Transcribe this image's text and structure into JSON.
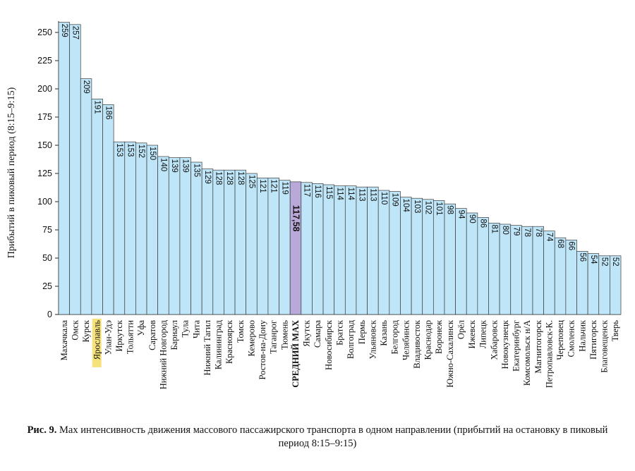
{
  "caption": {
    "prefix": "Рис. 9.",
    "text": "Мах интенсивность движения массового пассажирского транспорта в одном направлении (прибытий на остановку в пиковый период 8:15–9:15)"
  },
  "colors": {
    "bar": "#bfe6f8",
    "bar_stroke": "#3a3a3a",
    "average_bar": "#b9a9d9",
    "highlight_label_bg": "#f6e27a"
  },
  "chart_data": {
    "type": "bar",
    "ylabel": "Прибытий в пиковый период (8:15–9:15)",
    "xlabel": "",
    "ylim": [
      0,
      260
    ],
    "yticks": [
      0,
      25,
      50,
      75,
      100,
      125,
      150,
      175,
      200,
      225,
      250
    ],
    "grid": false,
    "categories": [
      "Махачкала",
      "Омск",
      "Курск",
      "Ярославль",
      "Улан-Удэ",
      "Иркутск",
      "Тольятти",
      "Уфа",
      "Саратов",
      "Нижний Новгород",
      "Барнаул",
      "Тула",
      "Чита",
      "Нижний Тагил",
      "Калининград",
      "Красноярск",
      "Томск",
      "Кемерово",
      "Ростов-на-Дону",
      "Таганрог",
      "Тюмень",
      "СРЕДНИЙ MAX",
      "Якутск",
      "Самара",
      "Новосибирск",
      "Братск",
      "Волгоград",
      "Пермь",
      "Ульяновск",
      "Казань",
      "Белгород",
      "Челябинск",
      "Владивосток",
      "Краснодар",
      "Воронеж",
      "Южно-Сахалинск",
      "Орёл",
      "Ижевск",
      "Липецк",
      "Хабаровск",
      "Новокузнецк",
      "Екатеринбург",
      "Комсомольск н/А",
      "Магнитогорск",
      "Петропавловск-К.",
      "Череповец",
      "Смоленск",
      "Нальчик",
      "Пятигорск",
      "Благовещенск",
      "Тверь"
    ],
    "values": [
      259,
      257,
      209,
      191,
      186,
      153,
      153,
      152,
      150,
      140,
      139,
      139,
      135,
      129,
      128,
      128,
      128,
      125,
      121,
      121,
      119,
      117.58,
      117,
      116,
      115,
      114,
      114,
      113,
      113,
      110,
      109,
      104,
      103,
      102,
      101,
      98,
      94,
      90,
      86,
      81,
      80,
      79,
      78,
      78,
      74,
      68,
      66,
      56,
      54,
      52,
      52
    ],
    "value_labels": [
      "259",
      "257",
      "209",
      "191",
      "186",
      "153",
      "153",
      "152",
      "150",
      "140",
      "139",
      "139",
      "135",
      "129",
      "128",
      "128",
      "128",
      "125",
      "121",
      "121",
      "119",
      "117,58",
      "117",
      "116",
      "115",
      "114",
      "114",
      "113",
      "113",
      "110",
      "109",
      "104",
      "103",
      "102",
      "101",
      "98",
      "94",
      "90",
      "86",
      "81",
      "80",
      "79",
      "78",
      "78",
      "74",
      "68",
      "66",
      "56",
      "54",
      "52",
      "52"
    ],
    "average_category": "СРЕДНИЙ MAX",
    "highlighted_category": "Ярославль"
  }
}
